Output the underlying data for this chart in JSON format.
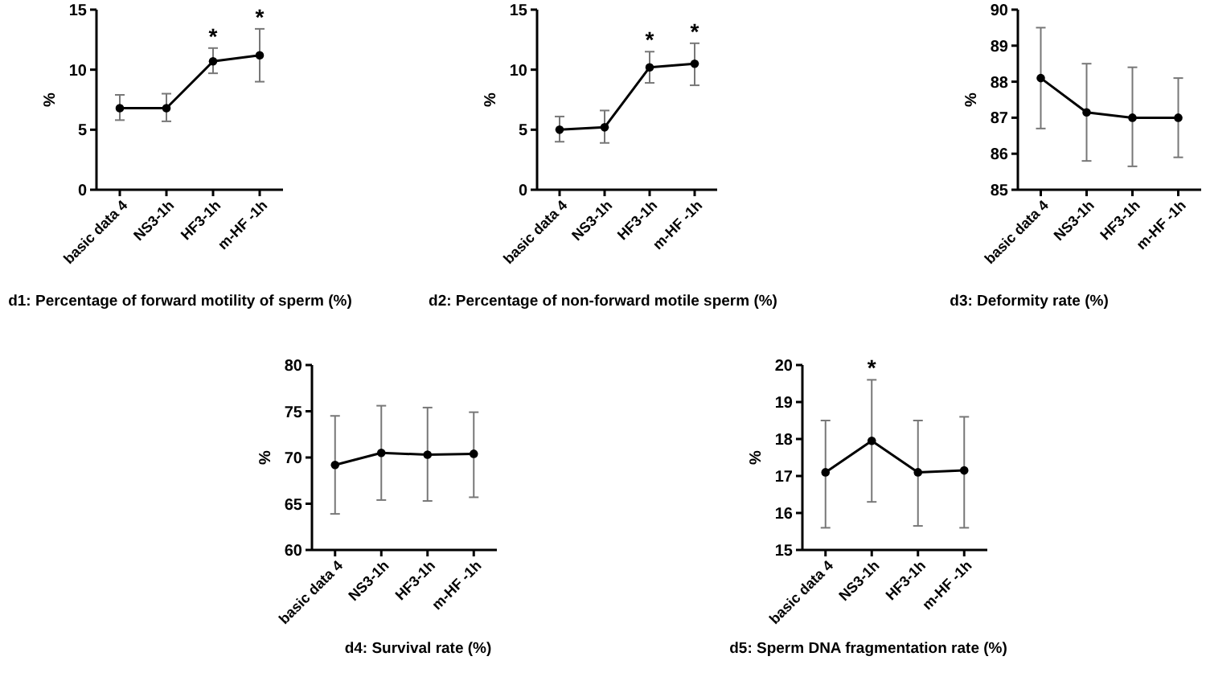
{
  "chart_data": [
    {
      "type": "line",
      "title": "d1: Percentage of forward motility of sperm (%)",
      "ylabel": "%",
      "categories": [
        "basic data 4",
        "NS3-1h",
        "HF3-1h",
        "m-HF -1h"
      ],
      "series": [
        {
          "color": "#000000",
          "values": [
            6.8,
            6.8,
            10.7,
            11.2
          ],
          "errors": [
            [
              5.8,
              7.9
            ],
            [
              5.7,
              8.0
            ],
            [
              9.7,
              11.8
            ],
            [
              9.0,
              13.4
            ]
          ]
        }
      ],
      "ylim": [
        0,
        15
      ],
      "yticks": [
        0,
        5,
        10,
        15
      ],
      "grid": false,
      "marker": "circle",
      "line_style": "solid",
      "annotations": [
        {
          "text": "*",
          "x": "HF3-1h",
          "y": 11.8
        },
        {
          "text": "*",
          "x": "m-HF -1h",
          "y": 13.4
        }
      ]
    },
    {
      "type": "line",
      "title": "d2: Percentage of non-forward motile sperm (%)",
      "ylabel": "%",
      "categories": [
        "basic data 4",
        "NS3-1h",
        "HF3-1h",
        "m-HF -1h"
      ],
      "series": [
        {
          "color": "#000000",
          "values": [
            5.0,
            5.2,
            10.2,
            10.5
          ],
          "errors": [
            [
              4.0,
              6.1
            ],
            [
              3.9,
              6.6
            ],
            [
              8.9,
              11.5
            ],
            [
              8.7,
              12.2
            ]
          ]
        }
      ],
      "ylim": [
        0,
        15
      ],
      "yticks": [
        0,
        5,
        10,
        15
      ],
      "grid": false,
      "marker": "circle",
      "line_style": "solid",
      "annotations": [
        {
          "text": "*",
          "x": "HF3-1h",
          "y": 11.5
        },
        {
          "text": "*",
          "x": "m-HF -1h",
          "y": 12.2
        }
      ]
    },
    {
      "type": "line",
      "title": "d3: Deformity rate (%)",
      "ylabel": "%",
      "categories": [
        "basic data 4",
        "NS3-1h",
        "HF3-1h",
        "m-HF -1h"
      ],
      "series": [
        {
          "color": "#000000",
          "values": [
            88.1,
            87.15,
            87.0,
            87.0
          ],
          "errors": [
            [
              86.7,
              89.5
            ],
            [
              85.8,
              88.5
            ],
            [
              85.65,
              88.4
            ],
            [
              85.9,
              88.1
            ]
          ]
        }
      ],
      "ylim": [
        85,
        90
      ],
      "yticks": [
        85,
        86,
        87,
        88,
        89,
        90
      ],
      "grid": false,
      "marker": "circle",
      "line_style": "solid"
    },
    {
      "type": "line",
      "title": "d4: Survival rate (%)",
      "ylabel": "%",
      "categories": [
        "basic data 4",
        "NS3-1h",
        "HF3-1h",
        "m-HF -1h"
      ],
      "series": [
        {
          "color": "#000000",
          "values": [
            69.2,
            70.5,
            70.3,
            70.4
          ],
          "errors": [
            [
              63.9,
              74.5
            ],
            [
              65.4,
              75.6
            ],
            [
              65.3,
              75.4
            ],
            [
              65.7,
              74.9
            ]
          ]
        }
      ],
      "ylim": [
        60,
        80
      ],
      "yticks": [
        60,
        65,
        70,
        75,
        80
      ],
      "grid": false,
      "marker": "circle",
      "line_style": "solid"
    },
    {
      "type": "line",
      "title": "d5: Sperm DNA fragmentation rate (%)",
      "ylabel": "%",
      "categories": [
        "basic data 4",
        "NS3-1h",
        "HF3-1h",
        "m-HF -1h"
      ],
      "series": [
        {
          "color": "#000000",
          "values": [
            17.1,
            17.95,
            17.1,
            17.15
          ],
          "errors": [
            [
              15.6,
              18.5
            ],
            [
              16.3,
              19.6
            ],
            [
              15.65,
              18.5
            ],
            [
              15.6,
              18.6
            ]
          ]
        }
      ],
      "ylim": [
        15,
        20
      ],
      "yticks": [
        15,
        16,
        17,
        18,
        19,
        20
      ],
      "grid": false,
      "marker": "circle",
      "line_style": "solid",
      "annotations": [
        {
          "text": "*",
          "x": "NS3-1h",
          "y": 19.6
        }
      ]
    }
  ]
}
